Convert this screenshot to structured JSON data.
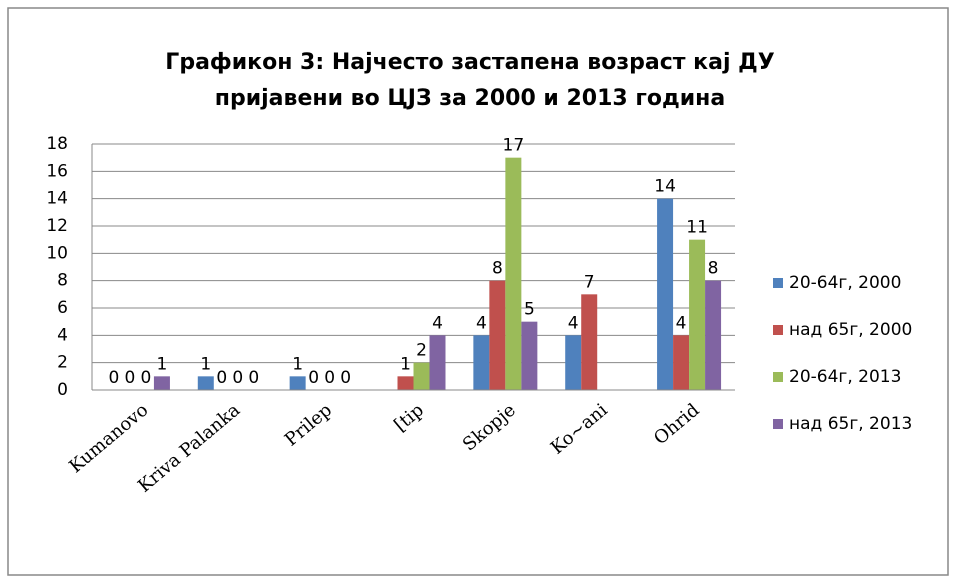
{
  "chart_data": {
    "type": "bar",
    "title": [
      "Графикон 3: Најчесто застапена возраст кај ДУ",
      "пријавени во ЦЈЗ за 2000 и 2013 година"
    ],
    "categories": [
      "Kumanovo",
      "Kriva Palanka",
      "Prilep",
      "[tip",
      "Skopje",
      "Ko~ani",
      "Ohrid"
    ],
    "series": [
      {
        "name": "20-64г, 2000",
        "color": "#4f81bd",
        "values": [
          0,
          1,
          1,
          null,
          4,
          4,
          14
        ]
      },
      {
        "name": "над 65г, 2000",
        "color": "#c0504d",
        "values": [
          0,
          0,
          0,
          1,
          8,
          7,
          4
        ]
      },
      {
        "name": "20-64г, 2013",
        "color": "#9bbb59",
        "values": [
          0,
          0,
          0,
          2,
          17,
          null,
          11
        ]
      },
      {
        "name": "над 65г, 2013",
        "color": "#8064a2",
        "values": [
          1,
          0,
          0,
          4,
          5,
          null,
          8
        ]
      }
    ],
    "ylim": [
      0,
      18
    ],
    "yticks": [
      0,
      2,
      4,
      6,
      8,
      10,
      12,
      14,
      16,
      18
    ],
    "grid": true,
    "legend": "right"
  }
}
